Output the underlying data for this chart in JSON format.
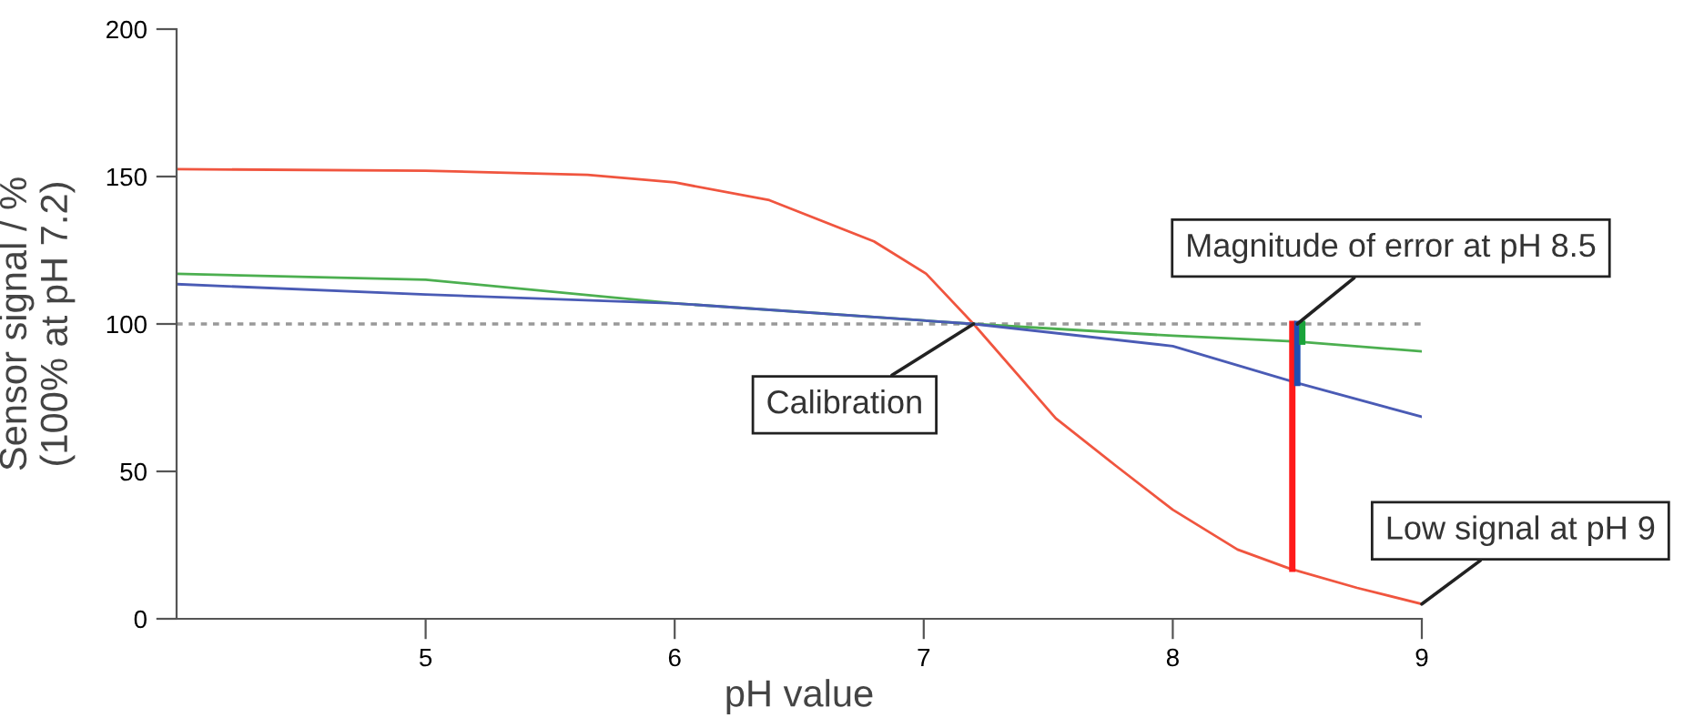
{
  "chart_data": {
    "type": "line",
    "xlabel": "pH value",
    "ylabel": "Sensor signal / %\n(100% at pH 7.2)",
    "xlim": [
      4,
      9
    ],
    "xticks": [
      5,
      6,
      7,
      8,
      9
    ],
    "ylim": [
      0,
      200
    ],
    "yticks": [
      0,
      50,
      100,
      150,
      200
    ],
    "grid": false,
    "legend": false,
    "line_style": "solid",
    "marker": "none",
    "series": [
      {
        "color": "#f0553f",
        "x": [
          4,
          5,
          5.65,
          6,
          6.38,
          6.8,
          7.01,
          7.2,
          7.53,
          7.77,
          8.0,
          8.26,
          8.47,
          8.74,
          9
        ],
        "values": [
          152.5,
          152,
          150.6,
          148,
          142,
          128,
          117,
          100,
          68,
          52,
          37,
          23.5,
          17,
          10.5,
          5
        ]
      },
      {
        "color": "#4caf50",
        "x": [
          4,
          5,
          6,
          7.2,
          8,
          8.5,
          9
        ],
        "values": [
          117,
          115,
          107,
          100,
          96,
          94,
          90.7
        ]
      },
      {
        "color": "#4a5bb5",
        "x": [
          4,
          5,
          6,
          7.2,
          8,
          8.5,
          9
        ],
        "values": [
          113.5,
          110,
          107,
          100,
          92.5,
          80,
          68.5
        ]
      },
      {
        "color": "#ff1a1a",
        "x": [
          8.48,
          8.48
        ],
        "values": [
          100,
          17
        ]
      },
      {
        "color": "#1f4fb0",
        "x": [
          8.5,
          8.5
        ],
        "values": [
          100,
          80
        ]
      },
      {
        "color": "#1aa33a",
        "x": [
          8.52,
          8.52
        ],
        "values": [
          100,
          94
        ]
      }
    ],
    "ref_lines": [
      {
        "axis": "y",
        "value": 100,
        "color": "#999999",
        "line_style": "dotted"
      }
    ],
    "annotations": [
      {
        "text": "Calibration",
        "x": 7.2,
        "y": 100
      },
      {
        "text": "Magnitude of error at pH 8.5",
        "x": 8.5,
        "y": 100
      },
      {
        "text": "Low signal at pH 9",
        "x": 9,
        "y": 5
      }
    ]
  }
}
